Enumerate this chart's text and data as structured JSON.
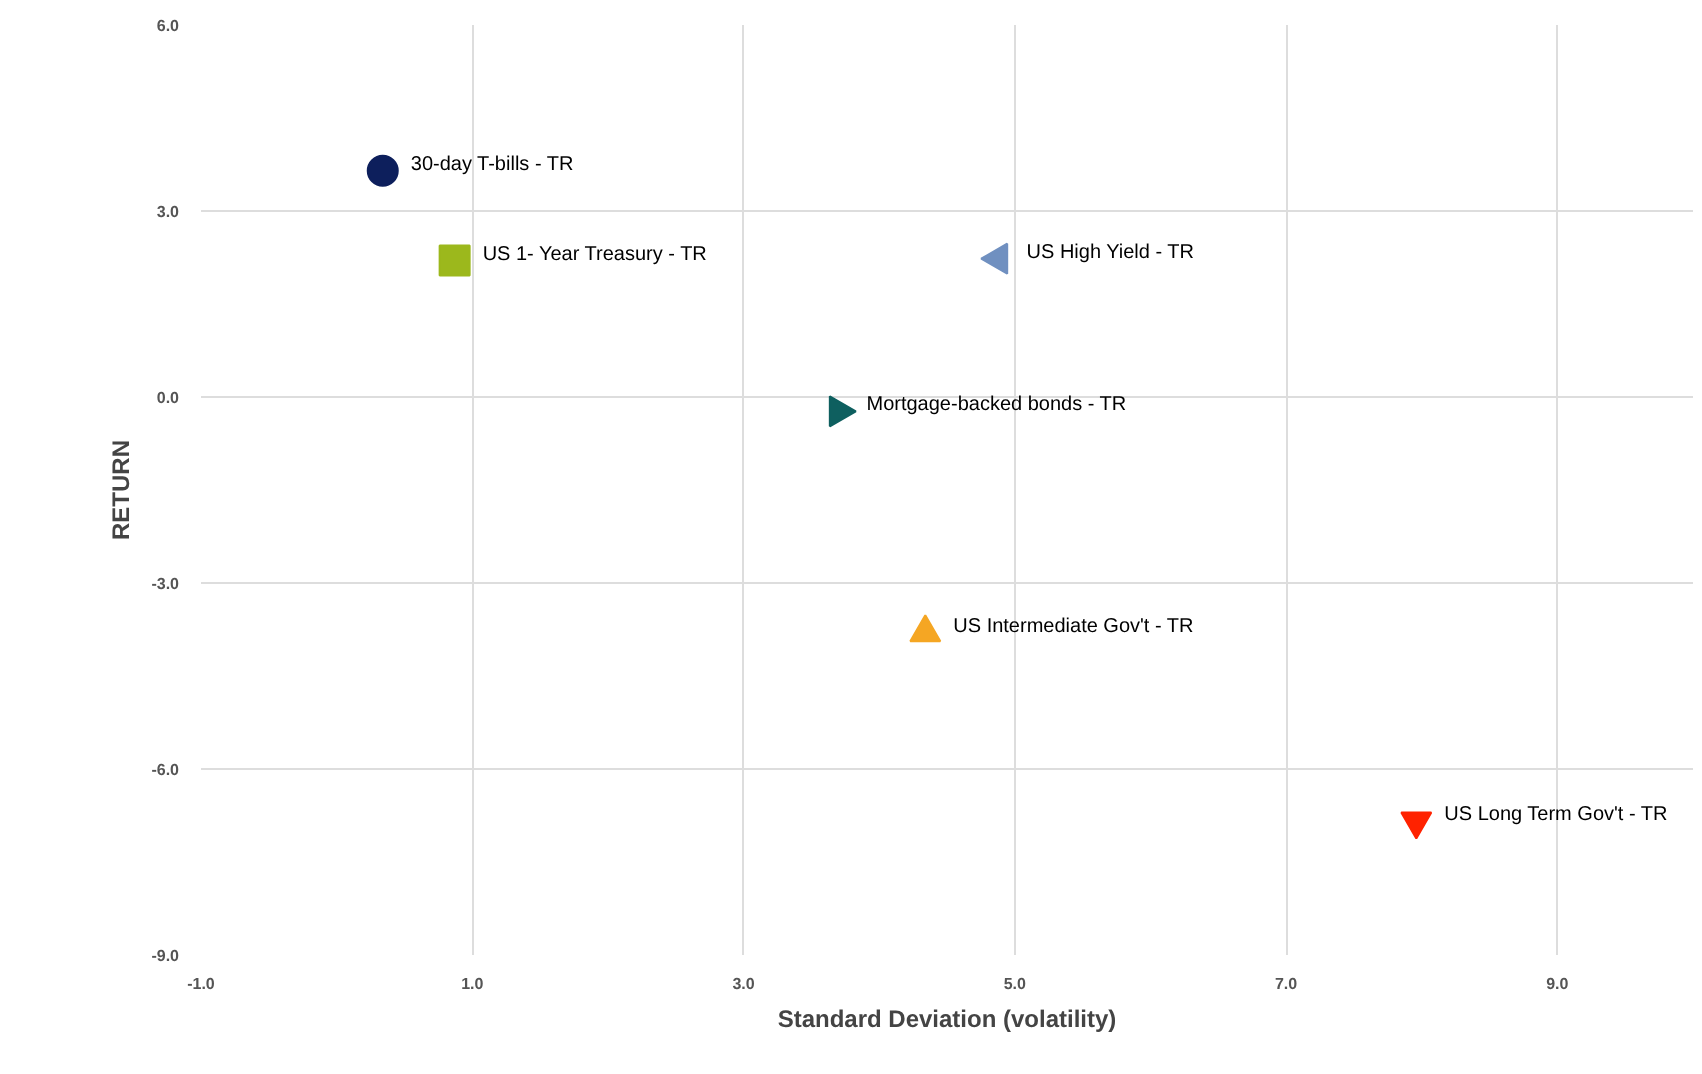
{
  "chart_data": {
    "type": "scatter",
    "xlabel": "Standard Deviation (volatility)",
    "ylabel": "RETURN",
    "xlim": [
      -1,
      10
    ],
    "ylim": [
      -9,
      6
    ],
    "xticks": [
      {
        "value": -1,
        "label": "-1.0"
      },
      {
        "value": 1,
        "label": "1.0"
      },
      {
        "value": 3,
        "label": "3.0"
      },
      {
        "value": 5,
        "label": "5.0"
      },
      {
        "value": 7,
        "label": "7.0"
      },
      {
        "value": 9,
        "label": "9.0"
      }
    ],
    "yticks": [
      {
        "value": -9,
        "label": "-9.0"
      },
      {
        "value": -6,
        "label": "-6.0"
      },
      {
        "value": -3,
        "label": "-3.0"
      },
      {
        "value": 0,
        "label": "0.0"
      },
      {
        "value": 3,
        "label": "3.0"
      },
      {
        "value": 6,
        "label": "6.0"
      }
    ],
    "grid": true,
    "series": [
      {
        "name": "30-day T-bills - TR",
        "color": "#0d1f5c",
        "marker": "circle",
        "x": [
          0.34
        ],
        "values": [
          3.65
        ]
      },
      {
        "name": "US 1- Year Treasury - TR",
        "color": "#9cb81c",
        "marker": "square",
        "x": [
          0.87
        ],
        "values": [
          2.2
        ]
      },
      {
        "name": "US High Yield - TR",
        "color": "#7090c0",
        "marker": "triangle-left",
        "x": [
          4.88
        ],
        "values": [
          2.23
        ]
      },
      {
        "name": "Mortgage-backed bonds - TR",
        "color": "#0e5f5f",
        "marker": "triangle-right",
        "x": [
          3.7
        ],
        "values": [
          -0.23
        ]
      },
      {
        "name": "US Intermediate Gov't  - TR",
        "color": "#f5a623",
        "marker": "triangle",
        "x": [
          4.34
        ],
        "values": [
          -3.8
        ]
      },
      {
        "name": "US Long Term Gov't  - TR",
        "color": "#ff2200",
        "marker": "triangle-down",
        "x": [
          7.96
        ],
        "values": [
          -6.84
        ]
      }
    ]
  }
}
